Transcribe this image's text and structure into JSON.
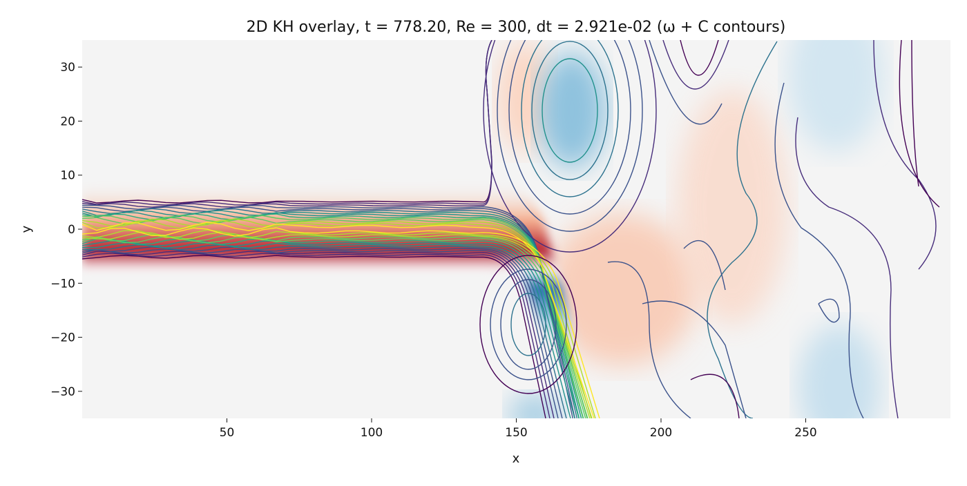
{
  "chart_data": {
    "type": "heatmap",
    "title": "2D KH overlay, t =  778.20, Re = 300, dt = 2.921e-02 (ω + C contours)",
    "xlabel": "x",
    "ylabel": "y",
    "xlim": [
      0,
      300
    ],
    "ylim": [
      -35,
      35
    ],
    "xticks": [
      50,
      100,
      150,
      200,
      250
    ],
    "yticks": [
      30,
      20,
      10,
      0,
      -10,
      -20,
      -30
    ],
    "xtick_labels": [
      "50",
      "100",
      "150",
      "200",
      "250"
    ],
    "ytick_labels": [
      "30",
      "20",
      "10",
      "0",
      "−10",
      "−20",
      "−30"
    ],
    "grid": false,
    "overlay": "contours",
    "t": 778.2,
    "Re": 300,
    "dt": 0.02921,
    "colors": {
      "positive": "#b2182b",
      "negative": "#2166ac",
      "neutral": "#f4f4f4"
    }
  }
}
